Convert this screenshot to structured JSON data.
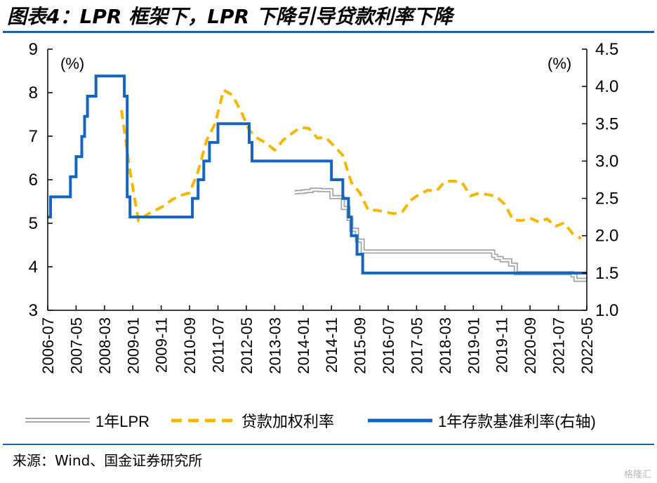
{
  "title": "图表4：LPR 框架下，LPR 下降引导贷款利率下降",
  "source": "来源：Wind、国金证券研究所",
  "watermark": "格隆汇",
  "chart_data": {
    "type": "line",
    "left_unit": "(%)",
    "right_unit": "(%)",
    "left_ylim": [
      3,
      9
    ],
    "left_ticks": [
      "3",
      "4",
      "5",
      "6",
      "7",
      "8",
      "9"
    ],
    "right_ylim": [
      1.0,
      4.5
    ],
    "right_ticks": [
      "1.0",
      "1.5",
      "2.0",
      "2.5",
      "3.0",
      "3.5",
      "4.0",
      "4.5"
    ],
    "x_ticks": [
      "2006-07",
      "2007-05",
      "2008-03",
      "2009-01",
      "2009-11",
      "2010-09",
      "2011-07",
      "2012-05",
      "2013-03",
      "2014-01",
      "2014-11",
      "2015-09",
      "2016-07",
      "2017-05",
      "2018-03",
      "2019-01",
      "2019-11",
      "2020-09",
      "2021-07",
      "2022-05"
    ],
    "grid": false,
    "legend_position": "bottom",
    "series": [
      {
        "name": "1年LPR",
        "axis": "left",
        "style": "double-gray",
        "color": "#a6a6a6",
        "points": [
          [
            "2013-10",
            5.71
          ],
          [
            "2013-11",
            5.72
          ],
          [
            "2014-01",
            5.73
          ],
          [
            "2014-02",
            5.74
          ],
          [
            "2014-04",
            5.77
          ],
          [
            "2014-07",
            5.76
          ],
          [
            "2014-10",
            5.76
          ],
          [
            "2014-11",
            5.6
          ],
          [
            "2015-02",
            5.6
          ],
          [
            "2015-03",
            5.35
          ],
          [
            "2015-05",
            5.1
          ],
          [
            "2015-06",
            4.85
          ],
          [
            "2015-08",
            4.6
          ],
          [
            "2015-10",
            4.35
          ],
          [
            "2016-06",
            4.35
          ],
          [
            "2019-06",
            4.35
          ],
          [
            "2019-08",
            4.25
          ],
          [
            "2019-09",
            4.2
          ],
          [
            "2019-11",
            4.15
          ],
          [
            "2020-02",
            4.05
          ],
          [
            "2020-04",
            3.85
          ],
          [
            "2021-12",
            3.8
          ],
          [
            "2022-01",
            3.7
          ],
          [
            "2022-05",
            3.7
          ]
        ]
      },
      {
        "name": "贷款加权利率",
        "axis": "left",
        "style": "dashed",
        "color": "#f6b700",
        "points": [
          [
            "2008-09",
            7.6
          ],
          [
            "2008-12",
            6.2
          ],
          [
            "2009-03",
            5.05
          ],
          [
            "2009-06",
            5.2
          ],
          [
            "2009-09",
            5.3
          ],
          [
            "2009-12",
            5.4
          ],
          [
            "2010-03",
            5.55
          ],
          [
            "2010-06",
            5.64
          ],
          [
            "2010-09",
            5.7
          ],
          [
            "2010-12",
            6.19
          ],
          [
            "2011-03",
            6.91
          ],
          [
            "2011-06",
            7.29
          ],
          [
            "2011-09",
            8.06
          ],
          [
            "2011-12",
            7.95
          ],
          [
            "2012-03",
            7.59
          ],
          [
            "2012-06",
            7.14
          ],
          [
            "2012-09",
            6.95
          ],
          [
            "2012-12",
            6.84
          ],
          [
            "2013-03",
            6.68
          ],
          [
            "2013-06",
            6.91
          ],
          [
            "2013-09",
            7.06
          ],
          [
            "2013-12",
            7.2
          ],
          [
            "2014-03",
            7.18
          ],
          [
            "2014-06",
            6.96
          ],
          [
            "2014-09",
            6.97
          ],
          [
            "2014-12",
            6.77
          ],
          [
            "2015-03",
            6.56
          ],
          [
            "2015-06",
            5.94
          ],
          [
            "2015-09",
            5.7
          ],
          [
            "2015-12",
            5.3
          ],
          [
            "2016-03",
            5.3
          ],
          [
            "2016-06",
            5.26
          ],
          [
            "2016-09",
            5.22
          ],
          [
            "2016-12",
            5.27
          ],
          [
            "2017-03",
            5.53
          ],
          [
            "2017-06",
            5.67
          ],
          [
            "2017-09",
            5.76
          ],
          [
            "2017-12",
            5.74
          ],
          [
            "2018-03",
            5.96
          ],
          [
            "2018-06",
            5.97
          ],
          [
            "2018-09",
            5.94
          ],
          [
            "2018-12",
            5.63
          ],
          [
            "2019-03",
            5.69
          ],
          [
            "2019-06",
            5.66
          ],
          [
            "2019-09",
            5.62
          ],
          [
            "2019-12",
            5.44
          ],
          [
            "2020-03",
            5.08
          ],
          [
            "2020-06",
            5.06
          ],
          [
            "2020-09",
            5.12
          ],
          [
            "2020-12",
            5.03
          ],
          [
            "2021-03",
            5.1
          ],
          [
            "2021-06",
            4.93
          ],
          [
            "2021-09",
            5.01
          ],
          [
            "2021-12",
            4.76
          ],
          [
            "2022-03",
            4.65
          ]
        ]
      },
      {
        "name": "1年存款基准利率(右轴)",
        "axis": "right",
        "style": "solid-step",
        "color": "#1565c0",
        "points": [
          [
            "2006-07",
            2.25
          ],
          [
            "2006-08",
            2.52
          ],
          [
            "2007-03",
            2.79
          ],
          [
            "2007-05",
            3.06
          ],
          [
            "2007-07",
            3.33
          ],
          [
            "2007-08",
            3.6
          ],
          [
            "2007-09",
            3.87
          ],
          [
            "2007-12",
            4.14
          ],
          [
            "2008-10",
            3.87
          ],
          [
            "2008-11",
            2.52
          ],
          [
            "2008-12",
            2.25
          ],
          [
            "2010-10",
            2.5
          ],
          [
            "2010-12",
            2.75
          ],
          [
            "2011-02",
            3.0
          ],
          [
            "2011-04",
            3.25
          ],
          [
            "2011-07",
            3.5
          ],
          [
            "2012-06",
            3.25
          ],
          [
            "2012-07",
            3.0
          ],
          [
            "2014-11",
            2.75
          ],
          [
            "2015-03",
            2.5
          ],
          [
            "2015-05",
            2.25
          ],
          [
            "2015-06",
            2.0
          ],
          [
            "2015-08",
            1.75
          ],
          [
            "2015-10",
            1.5
          ],
          [
            "2022-05",
            1.5
          ]
        ]
      }
    ]
  }
}
